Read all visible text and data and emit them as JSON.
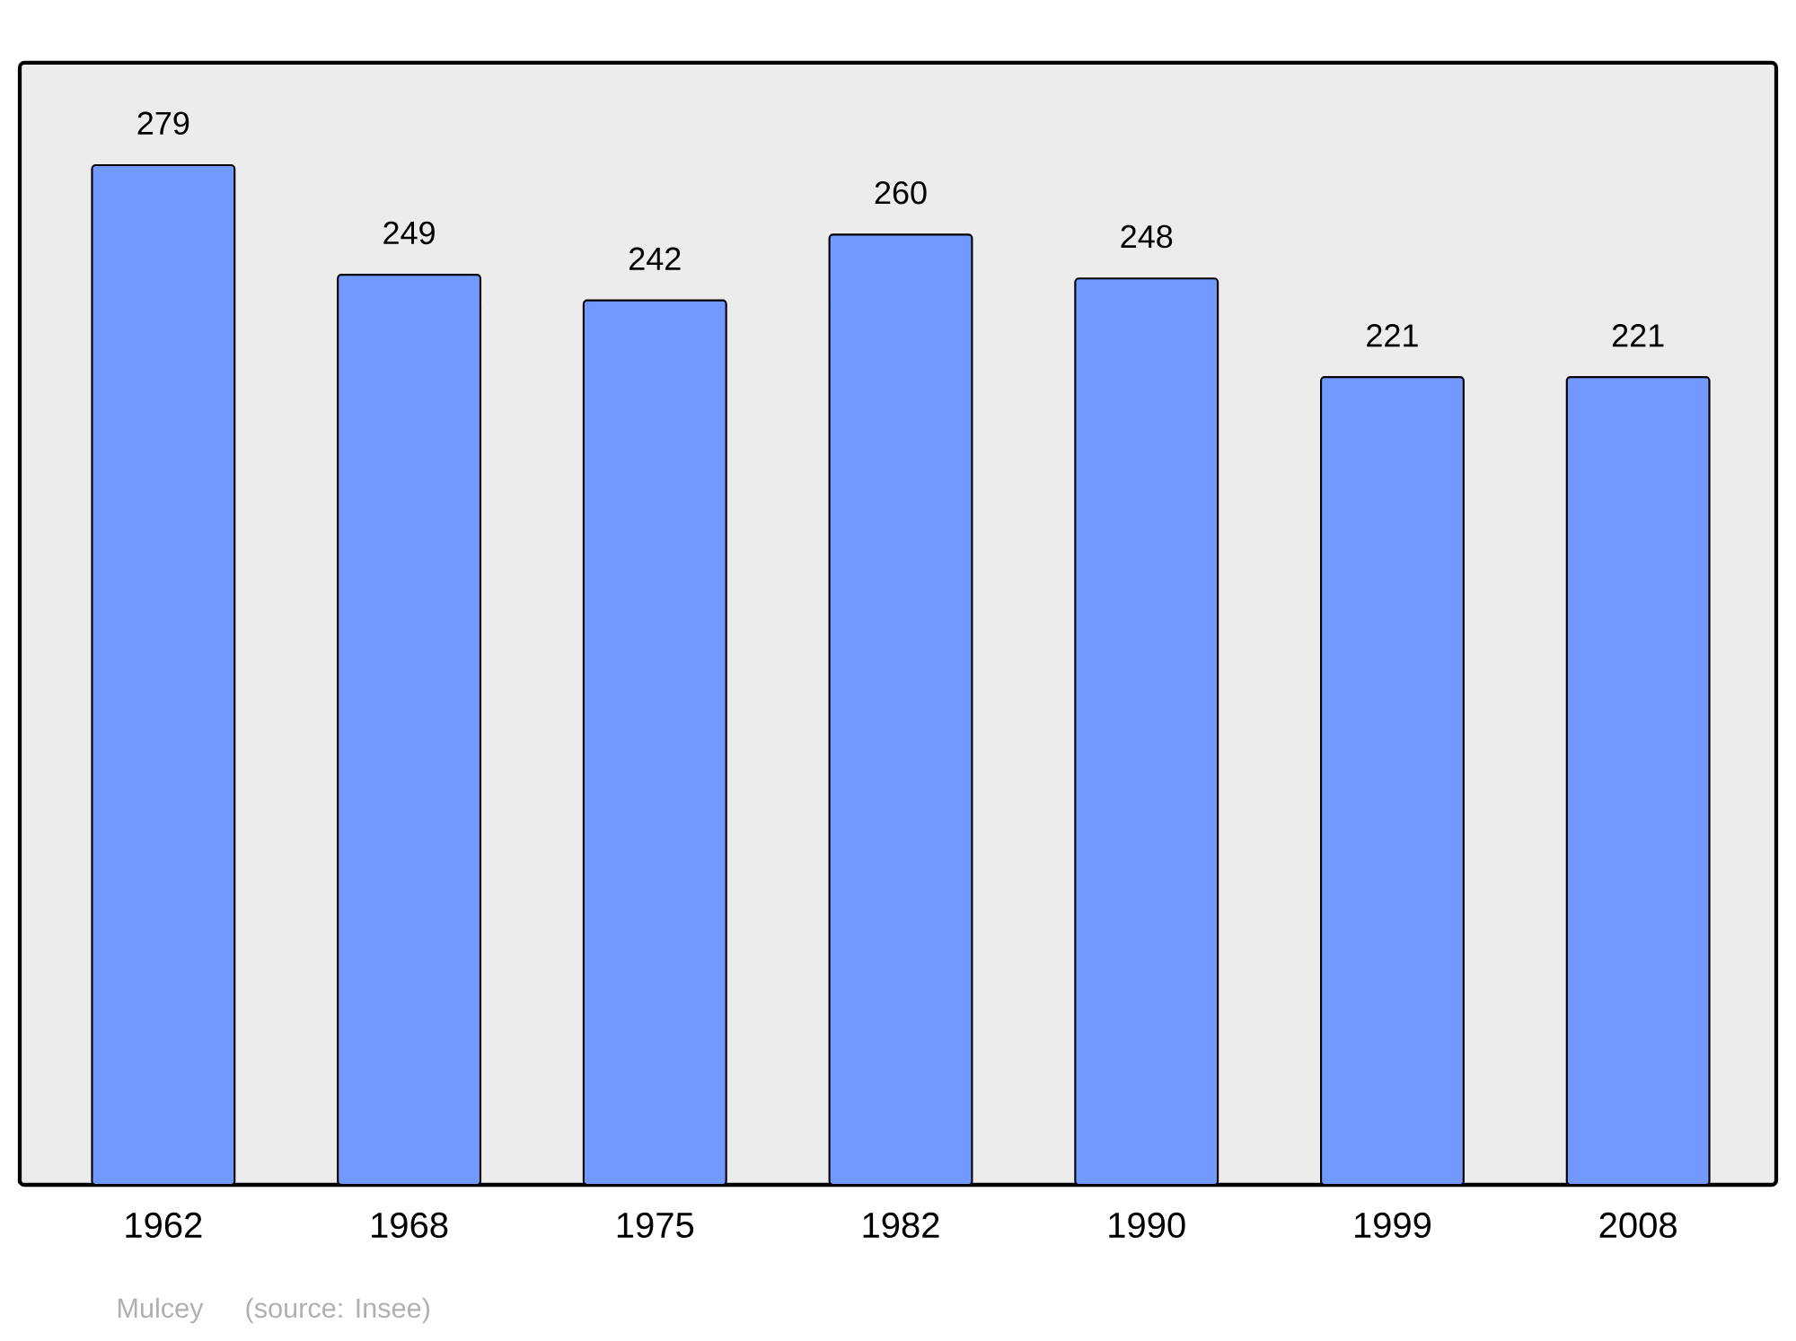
{
  "chart_data": {
    "type": "bar",
    "categories": [
      "1962",
      "1968",
      "1975",
      "1982",
      "1990",
      "1999",
      "2008"
    ],
    "values": [
      279,
      249,
      242,
      260,
      248,
      221,
      221
    ],
    "color": "#7299ff",
    "ylim": [
      0,
      307
    ],
    "data_labels": true,
    "tick_labels": "x",
    "annotations": [
      "Mulcey    (source: Insee)"
    ]
  }
}
